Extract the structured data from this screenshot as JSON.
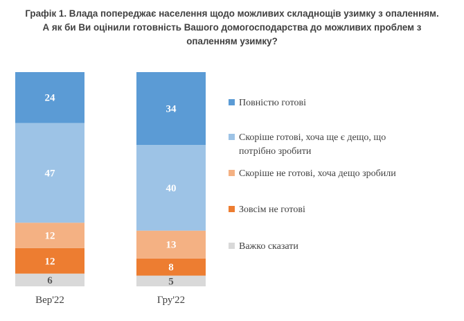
{
  "title_lines": [
    "Графік 1. Влада попереджає населення щодо можливих складнощів узимку з опаленням.",
    "А як би Ви оцінили готовність Вашого домогосподарства до можливих проблем з",
    "опаленням узимку?"
  ],
  "chart_data": {
    "type": "bar",
    "stacked": true,
    "percent_stacked": true,
    "categories": [
      "Вер'22",
      "Гру'22"
    ],
    "series": [
      {
        "name": "Важко сказати",
        "values": [
          6,
          5
        ],
        "color": "#d9d9d9",
        "label_color": "#595959"
      },
      {
        "name": "Зовсім не готові",
        "values": [
          12,
          8
        ],
        "color": "#ed7d31",
        "label_color": "#ffffff"
      },
      {
        "name": "Скоріше не готові, хоча дещо зробили",
        "values": [
          12,
          13
        ],
        "color": "#f4b183",
        "label_color": "#ffffff"
      },
      {
        "name": "Скоріше готові, хоча ще є дещо, що потрібно зробити",
        "values": [
          47,
          40
        ],
        "color": "#9dc3e6",
        "label_color": "#ffffff"
      },
      {
        "name": "Повністю готові",
        "values": [
          24,
          34
        ],
        "color": "#5b9bd5",
        "label_color": "#ffffff"
      }
    ],
    "legend": {
      "position": "right",
      "order": [
        "Повністю готові",
        "Скоріше готові, хоча ще є дещо, що потрібно зробити",
        "Скоріше не готові, хоча дещо зробили",
        "Зовсім не готові",
        "Важко сказати"
      ],
      "lines": [
        [
          "Повністю готові"
        ],
        [
          "Скоріше готові, хоча ще є дещо, що",
          "потрібно зробити"
        ],
        [
          "Скоріше не готові, хоча дещо зробили"
        ],
        [
          "Зовсім не готові"
        ],
        [
          "Важко сказати"
        ]
      ]
    },
    "grid": false
  }
}
